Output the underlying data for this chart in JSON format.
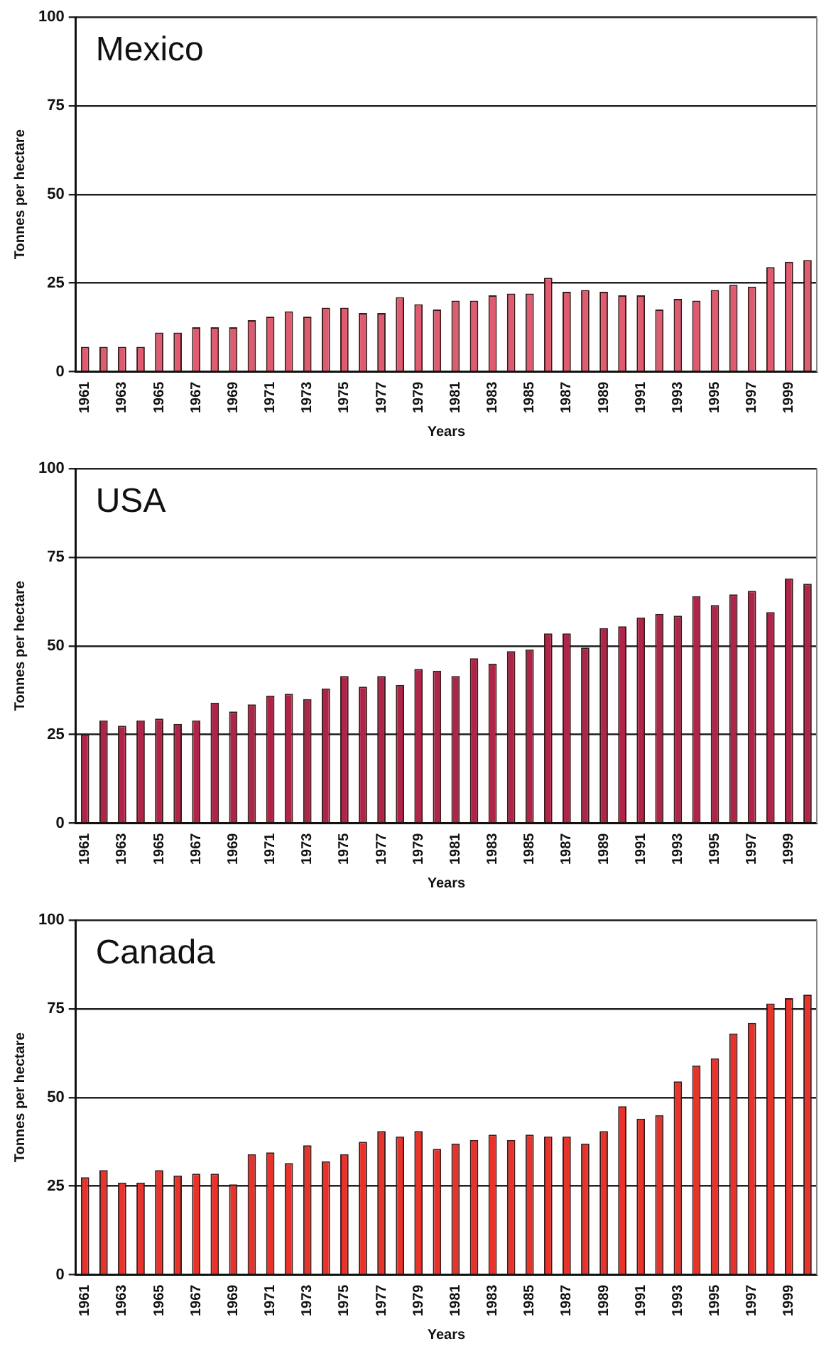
{
  "chart_data": [
    {
      "type": "bar",
      "title": "Mexico",
      "xlabel": "Years",
      "ylabel": "Tonnes per hectare",
      "categories": [
        "1961",
        null,
        "1963",
        null,
        "1965",
        null,
        "1967",
        null,
        "1969",
        null,
        "1971",
        null,
        "1973",
        null,
        "1975",
        null,
        "1977",
        null,
        "1979",
        null,
        "1981",
        null,
        "1983",
        null,
        "1985",
        null,
        "1987",
        null,
        "1989",
        null,
        "1991",
        null,
        "1993",
        null,
        "1995",
        null,
        "1997",
        null,
        "1999",
        null
      ],
      "values": [
        7,
        7,
        7,
        7,
        11,
        11,
        12.5,
        12.5,
        12.5,
        14.5,
        15.5,
        17,
        15.5,
        18,
        18,
        16.5,
        16.5,
        21,
        19,
        17.5,
        20,
        20,
        21.5,
        22,
        22,
        26.5,
        22.5,
        23,
        22.5,
        21.5,
        21.5,
        17.5,
        20.5,
        20,
        23,
        24.5,
        24,
        29.5,
        31,
        31.5
      ],
      "color": "#e05a70",
      "ylim": [
        0,
        100
      ],
      "yticks": [
        0,
        25,
        50,
        75,
        100
      ],
      "grid": "y"
    },
    {
      "type": "bar",
      "title": "USA",
      "xlabel": "Years",
      "ylabel": "Tonnes per hectare",
      "categories": [
        "1961",
        null,
        "1963",
        null,
        "1965",
        null,
        "1967",
        null,
        "1969",
        null,
        "1971",
        null,
        "1973",
        null,
        "1975",
        null,
        "1977",
        null,
        "1979",
        null,
        "1981",
        null,
        "1983",
        null,
        "1985",
        null,
        "1987",
        null,
        "1989",
        null,
        "1991",
        null,
        "1993",
        null,
        "1995",
        null,
        "1997",
        null,
        "1999",
        null
      ],
      "values": [
        25,
        29,
        27.5,
        29,
        29.5,
        28,
        29,
        34,
        31.5,
        33.5,
        36,
        36.5,
        35,
        38,
        41.5,
        38.5,
        41.5,
        39,
        43.5,
        43,
        41.5,
        46.5,
        45,
        48.5,
        49,
        53.5,
        53.5,
        49.5,
        55,
        55.5,
        58,
        59,
        58.5,
        64,
        61.5,
        64.5,
        65.5,
        59.5,
        69,
        67.5
      ],
      "color": "#b0244a",
      "ylim": [
        0,
        100
      ],
      "yticks": [
        0,
        25,
        50,
        75,
        100
      ],
      "grid": "y"
    },
    {
      "type": "bar",
      "title": "Canada",
      "xlabel": "Years",
      "ylabel": "Tonnes per hectare",
      "categories": [
        "1961",
        null,
        "1963",
        null,
        "1965",
        null,
        "1967",
        null,
        "1969",
        null,
        "1971",
        null,
        "1973",
        null,
        "1975",
        null,
        "1977",
        null,
        "1979",
        null,
        "1981",
        null,
        "1983",
        null,
        "1985",
        null,
        "1987",
        null,
        "1989",
        null,
        "1991",
        null,
        "1993",
        null,
        "1995",
        null,
        "1997",
        null,
        "1999",
        null
      ],
      "values": [
        27.5,
        29.5,
        26,
        26,
        29.5,
        28,
        28.5,
        28.5,
        25.5,
        34,
        34.5,
        31.5,
        36.5,
        32,
        34,
        37.5,
        40.5,
        39,
        40.5,
        35.5,
        37,
        38,
        39.5,
        38,
        39.5,
        39,
        39,
        37,
        40.5,
        47.5,
        44,
        45,
        54.5,
        59,
        61,
        68,
        71,
        76.5,
        78,
        79
      ],
      "color": "#e8322a",
      "ylim": [
        0,
        100
      ],
      "yticks": [
        0,
        25,
        50,
        75,
        100
      ],
      "grid": "y"
    }
  ]
}
